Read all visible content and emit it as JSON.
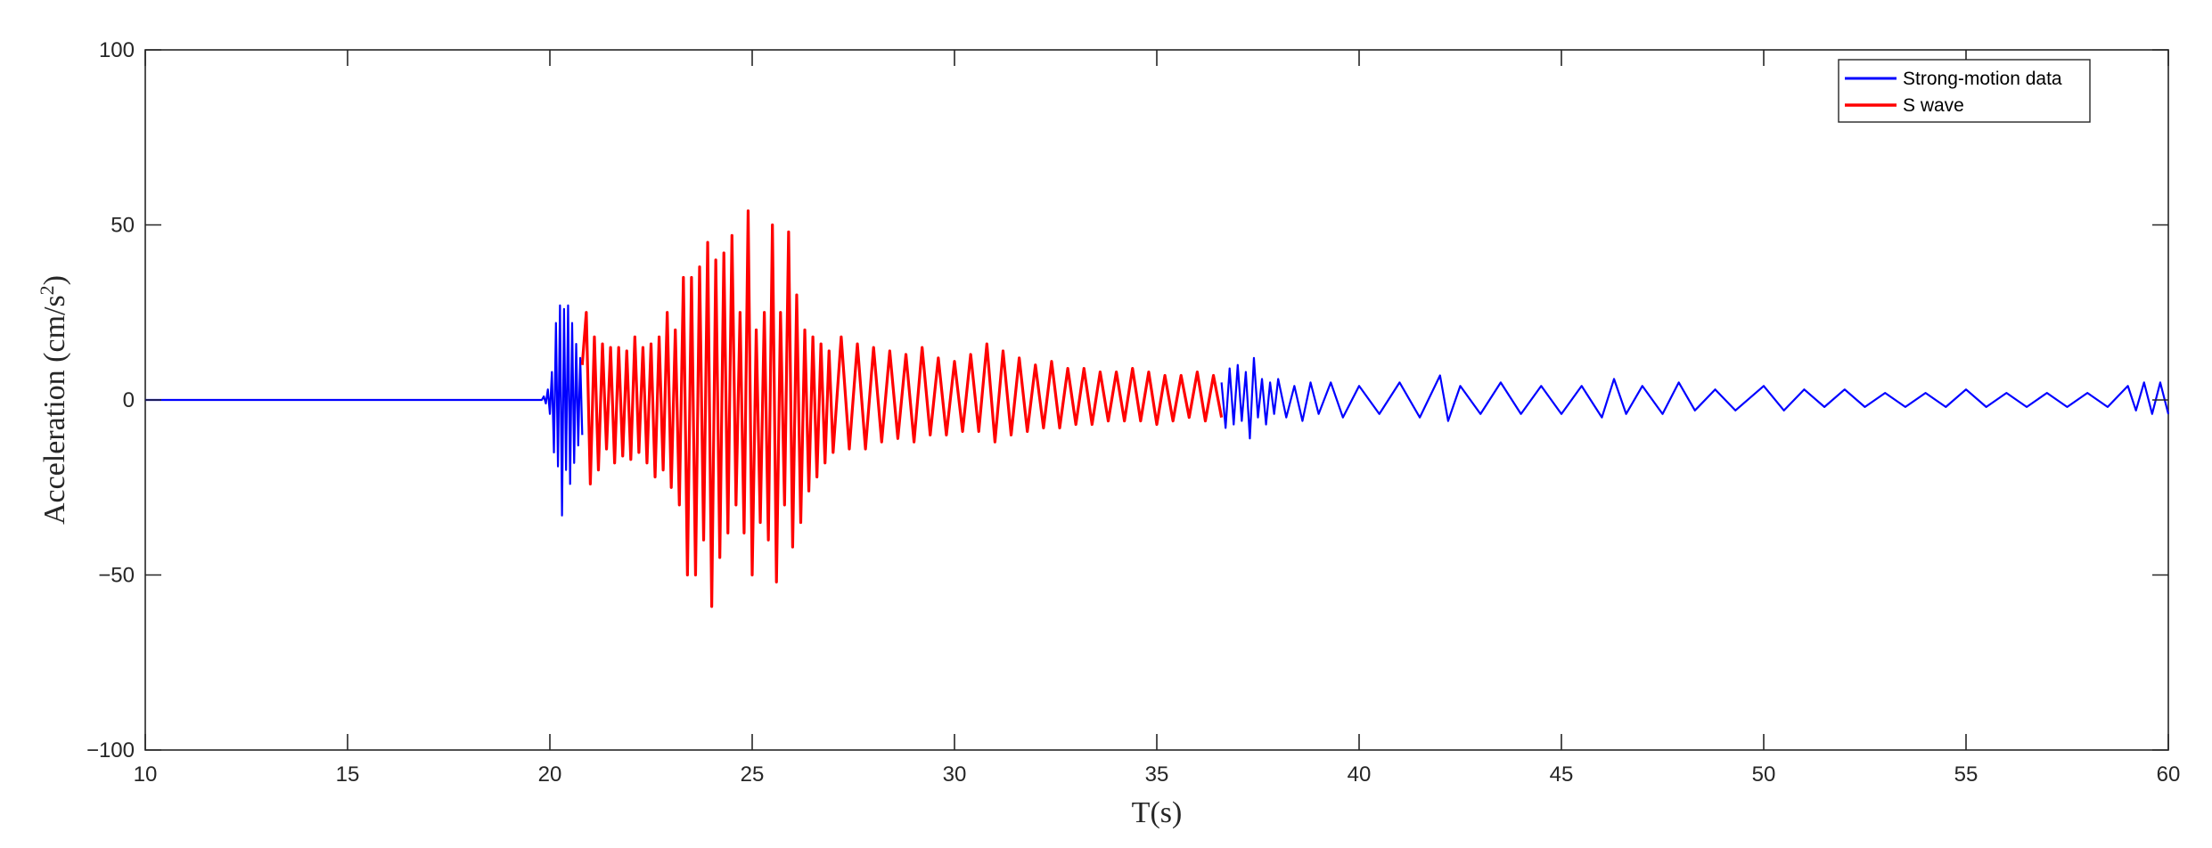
{
  "chart_data": {
    "type": "line",
    "xlabel": "T(s)",
    "ylabel_main": "Acceleration (cm/s",
    "ylabel_sup": "2",
    "ylabel_close": ")",
    "xlim": [
      10,
      60
    ],
    "ylim": [
      -100,
      100
    ],
    "xticks": [
      10,
      15,
      20,
      25,
      30,
      35,
      40,
      45,
      50,
      55,
      60
    ],
    "yticks": [
      -100,
      -50,
      0,
      50,
      100
    ],
    "xtick_labels": [
      "10",
      "15",
      "20",
      "25",
      "30",
      "35",
      "40",
      "45",
      "50",
      "55",
      "60"
    ],
    "ytick_labels": [
      "−100",
      "−50",
      "0",
      "50",
      "100"
    ],
    "grid": false,
    "legend_position": "top-right",
    "series": [
      {
        "name": "Strong-motion data",
        "color": "#0000ff",
        "segments": [
          {
            "x": [
              10.0,
              19.8,
              19.85,
              19.9,
              19.95,
              20.0,
              20.05,
              20.1,
              20.15,
              20.2,
              20.25,
              20.3,
              20.35,
              20.4,
              20.45,
              20.5,
              20.55,
              20.6,
              20.65,
              20.7,
              20.75,
              20.8
            ],
            "y": [
              0,
              0,
              1,
              -1,
              3,
              -4,
              8,
              -15,
              22,
              -19,
              27,
              -33,
              26,
              -20,
              27,
              -24,
              22,
              -18,
              16,
              -13,
              12,
              -10
            ]
          },
          {
            "x": [
              36.6,
              36.7,
              36.8,
              36.9,
              37.0,
              37.1,
              37.2,
              37.3,
              37.4,
              37.5,
              37.6,
              37.7,
              37.8,
              37.9,
              38.0,
              38.2,
              38.4,
              38.6,
              38.8,
              39.0,
              39.3,
              39.6,
              40.0,
              40.5,
              41.0,
              41.5,
              42.0,
              42.2,
              42.5,
              43.0,
              43.5,
              44.0,
              44.5,
              45.0,
              45.5,
              46.0,
              46.3,
              46.6,
              47.0,
              47.5,
              47.9,
              48.3,
              48.8,
              49.3,
              50.0,
              50.5,
              51.0,
              51.5,
              52.0,
              52.5,
              53.0,
              53.5,
              54.0,
              54.5,
              55.0,
              55.5,
              56.0,
              56.5,
              57.0,
              57.5,
              58.0,
              58.5,
              59.0,
              59.2,
              59.4,
              59.6,
              59.8,
              60.0
            ],
            "y": [
              5,
              -8,
              9,
              -7,
              10,
              -6,
              8,
              -11,
              12,
              -5,
              6,
              -7,
              5,
              -4,
              6,
              -5,
              4,
              -6,
              5,
              -4,
              5,
              -5,
              4,
              -4,
              5,
              -5,
              7,
              -6,
              4,
              -4,
              5,
              -4,
              4,
              -4,
              4,
              -5,
              6,
              -4,
              4,
              -4,
              5,
              -3,
              3,
              -3,
              4,
              -3,
              3,
              -2,
              3,
              -2,
              2,
              -2,
              2,
              -2,
              3,
              -2,
              2,
              -2,
              2,
              -2,
              2,
              -2,
              4,
              -3,
              5,
              -4,
              5,
              -4
            ]
          }
        ]
      },
      {
        "name": "S wave",
        "color": "#ff0000",
        "segments": [
          {
            "x": [
              20.8,
              20.9,
              21.0,
              21.1,
              21.2,
              21.3,
              21.4,
              21.5,
              21.6,
              21.7,
              21.8,
              21.9,
              22.0,
              22.1,
              22.2,
              22.3,
              22.4,
              22.5,
              22.6,
              22.7,
              22.8,
              22.9,
              23.0,
              23.1,
              23.2,
              23.3,
              23.4,
              23.5,
              23.6,
              23.7,
              23.8,
              23.9,
              24.0,
              24.1,
              24.2,
              24.3,
              24.4,
              24.5,
              24.6,
              24.7,
              24.8,
              24.9,
              25.0,
              25.1,
              25.2,
              25.3,
              25.4,
              25.5,
              25.6,
              25.7,
              25.8,
              25.9,
              26.0,
              26.1,
              26.2,
              26.3,
              26.4,
              26.5,
              26.6,
              26.7,
              26.8,
              26.9,
              27.0,
              27.2,
              27.4,
              27.6,
              27.8,
              28.0,
              28.2,
              28.4,
              28.6,
              28.8,
              29.0,
              29.2,
              29.4,
              29.6,
              29.8,
              30.0,
              30.2,
              30.4,
              30.6,
              30.8,
              31.0,
              31.2,
              31.4,
              31.6,
              31.8,
              32.0,
              32.2,
              32.4,
              32.6,
              32.8,
              33.0,
              33.2,
              33.4,
              33.6,
              33.8,
              34.0,
              34.2,
              34.4,
              34.6,
              34.8,
              35.0,
              35.2,
              35.4,
              35.6,
              35.8,
              36.0,
              36.2,
              36.4,
              36.6
            ],
            "y": [
              10,
              25,
              -24,
              18,
              -20,
              16,
              -14,
              15,
              -18,
              15,
              -16,
              14,
              -17,
              18,
              -15,
              15,
              -18,
              16,
              -22,
              18,
              -20,
              25,
              -25,
              20,
              -30,
              35,
              -50,
              35,
              -50,
              38,
              -40,
              45,
              -59,
              40,
              -45,
              42,
              -38,
              47,
              -30,
              25,
              -38,
              54,
              -50,
              20,
              -35,
              25,
              -40,
              50,
              -52,
              25,
              -30,
              48,
              -42,
              30,
              -35,
              20,
              -26,
              18,
              -22,
              16,
              -18,
              14,
              -15,
              18,
              -14,
              16,
              -14,
              15,
              -12,
              14,
              -11,
              13,
              -12,
              15,
              -10,
              12,
              -10,
              11,
              -9,
              13,
              -9,
              16,
              -12,
              14,
              -10,
              12,
              -9,
              10,
              -8,
              11,
              -8,
              9,
              -7,
              9,
              -7,
              8,
              -6,
              8,
              -6,
              9,
              -6,
              8,
              -7,
              7,
              -6,
              7,
              -5,
              8,
              -6,
              7,
              -5
            ]
          }
        ]
      }
    ]
  }
}
